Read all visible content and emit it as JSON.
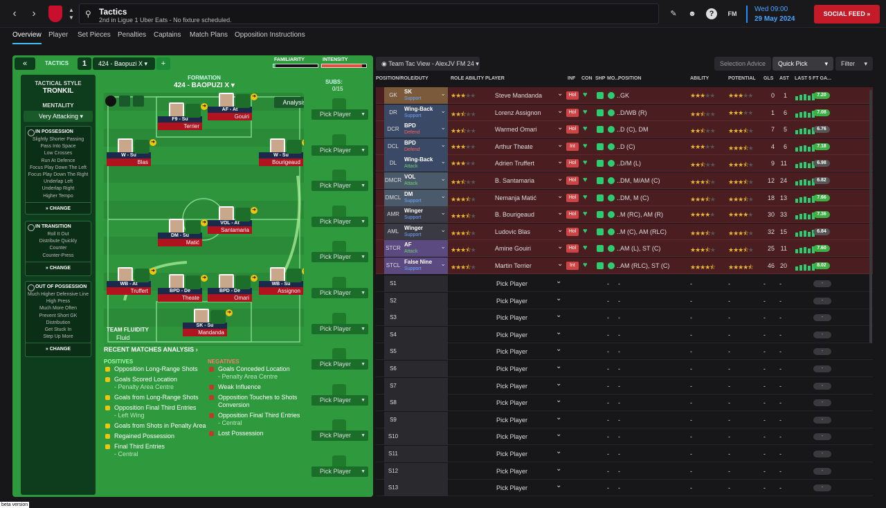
{
  "topbar": {
    "title": "Tactics",
    "subtitle": "2nd in Ligue 1 Uber Eats - No fixture scheduled.",
    "date_day": "Wed 09:00",
    "date_full": "29 May 2024",
    "social": "SOCIAL FEED",
    "fm": "FM"
  },
  "tabs": [
    "Overview",
    "Player",
    "Set Pieces",
    "Penalties",
    "Captains",
    "Match Plans",
    "Opposition Instructions"
  ],
  "tactics": {
    "label": "TACTICS",
    "slot": "1",
    "name": "424 - Baopuzi X",
    "familiarity_label": "FAMILIARITY",
    "intensity_label": "INTENSITY",
    "familiarity": 0.05,
    "intensity": 0.9,
    "style_label": "TACTICAL STYLE",
    "style": "TRONKIL",
    "mentality_label": "MENTALITY",
    "mentality": "Very Attacking",
    "in_possession": {
      "title": "IN POSSESSION",
      "items": [
        "Slightly Shorter Passing",
        "Pass Into Space",
        "Low Crosses",
        "Run At Defence",
        "Focus Play Down The Left",
        "Focus Play Down The Right",
        "Underlap Left",
        "Underlap Right",
        "Higher Tempo"
      ]
    },
    "in_transition": {
      "title": "IN TRANSITION",
      "items": [
        "Roll It Out",
        "Distribute Quickly",
        "Counter",
        "Counter-Press"
      ]
    },
    "out_of_possession": {
      "title": "OUT OF POSSESSION",
      "items": [
        "Much Higher Defensive Line",
        "High Press",
        "Much More Often",
        "Prevent Short GK",
        "Distribution",
        "Get Stuck In",
        "Step Up More"
      ]
    },
    "change": "CHANGE",
    "formation_label": "FORMATION",
    "formation": "424 - BAOPUZI X",
    "subs_label": "SUBS:",
    "subs": "0/15",
    "analysis_btn": "Analysis",
    "fluidity_label": "TEAM FLUIDITY",
    "fluidity": "Fluid"
  },
  "pitch_players": [
    {
      "role": "F9 - Su",
      "name": "Terrier"
    },
    {
      "role": "AF - At",
      "name": "Gouiri"
    },
    {
      "role": "W - Su",
      "name": "Blas"
    },
    {
      "role": "W - Su",
      "name": "Bourigeaud"
    },
    {
      "role": "VOL - At",
      "name": "Santamaria"
    },
    {
      "role": "DM - Su",
      "name": "Matić"
    },
    {
      "role": "WB - At",
      "name": "Truffert"
    },
    {
      "role": "BPD - De",
      "name": "Theate"
    },
    {
      "role": "BPD - De",
      "name": "Omari"
    },
    {
      "role": "WB - Su",
      "name": "Assignon"
    },
    {
      "role": "SK - Su",
      "name": "Mandanda"
    }
  ],
  "pick_player": "Pick Player",
  "recent": {
    "title": "RECENT MATCHES ANALYSIS",
    "positives_label": "POSITIVES",
    "negatives_label": "NEGATIVES",
    "positives": [
      {
        "t": "Opposition Long-Range Shots",
        "s": ""
      },
      {
        "t": "Goals Scored Location",
        "s": "- Penalty Area Centre"
      },
      {
        "t": "Goals from Long-Range Shots",
        "s": ""
      },
      {
        "t": "Opposition Final Third Entries",
        "s": "- Left Wing"
      },
      {
        "t": "Goals from Shots in Penalty Area",
        "s": ""
      },
      {
        "t": "Regained Possession",
        "s": ""
      },
      {
        "t": "Final Third Entries",
        "s": "- Central"
      }
    ],
    "negatives": [
      {
        "t": "Goals Conceded Location",
        "s": "- Penalty Area Centre"
      },
      {
        "t": "Weak Influence",
        "s": ""
      },
      {
        "t": "Opposition Touches to Shots Conversion",
        "s": ""
      },
      {
        "t": "Opposition Final Third Entries",
        "s": "- Central"
      },
      {
        "t": "Lost Possession",
        "s": ""
      }
    ]
  },
  "right": {
    "view": "Team Tac View - AlexJV FM 24",
    "selection_advice": "Selection Advice",
    "quick_pick": "Quick Pick",
    "filter": "Filter",
    "headers": {
      "pos": "POSITION/ROLE/DUTY",
      "role_ability": "ROLE ABILITY",
      "player": "PLAYER",
      "inf": "INF",
      "con": "CON",
      "shp": "SHP",
      "mo": "MO...",
      "position": "POSITION",
      "ability": "ABILITY",
      "potential": "POTENTIAL",
      "gls": "GLS",
      "ast": "AST",
      "last5": "LAST 5 FT GA..."
    },
    "rows": [
      {
        "pos": "GK",
        "role": "SK",
        "duty": "Support",
        "ra": 3,
        "player": "Steve Mandanda",
        "inf": "Hol",
        "position": "..GK",
        "ab": 3,
        "pot": 3,
        "gls": "0",
        "ast": "1",
        "rating": "7.20",
        "rc": "#3cb043"
      },
      {
        "pos": "DR",
        "role": "Wing-Back",
        "duty": "Support",
        "ra": 2.5,
        "player": "Lorenz Assignon",
        "inf": "Hol",
        "position": "..D/WB (R)",
        "ab": 2.5,
        "pot": 3,
        "gls": "1",
        "ast": "6",
        "rating": "7.08",
        "rc": "#3cb043"
      },
      {
        "pos": "DCR",
        "role": "BPD",
        "duty": "Defend",
        "ra": 2.5,
        "player": "Warmed Omari",
        "inf": "Hol",
        "position": "..D (C), DM",
        "ab": 2.5,
        "pot": 3.5,
        "gls": "7",
        "ast": "5",
        "rating": "6.76",
        "rc": "#555"
      },
      {
        "pos": "DCL",
        "role": "BPD",
        "duty": "Defend",
        "ra": 3,
        "player": "Arthur Theate",
        "inf": "Int",
        "position": "..D (C)",
        "ab": 3,
        "pot": 3.5,
        "gls": "4",
        "ast": "6",
        "rating": "7.18",
        "rc": "#3cb043"
      },
      {
        "pos": "DL",
        "role": "Wing-Back",
        "duty": "Attack",
        "ra": 3,
        "player": "Adrien Truffert",
        "inf": "Hol",
        "position": "..D/M (L)",
        "ab": 2.5,
        "pot": 3.5,
        "gls": "9",
        "ast": "11",
        "rating": "6.98",
        "rc": "#555"
      },
      {
        "pos": "DMCR",
        "role": "VOL",
        "duty": "Attack",
        "ra": 2.5,
        "player": "B. Santamaria",
        "inf": "Hol",
        "position": "..DM, M/AM (C)",
        "ab": 3.5,
        "pot": 3.5,
        "gls": "12",
        "ast": "24",
        "rating": "6.82",
        "rc": "#555"
      },
      {
        "pos": "DMCL",
        "role": "DM",
        "duty": "Support",
        "ra": 3.5,
        "player": "Nemanja Matić",
        "inf": "Hol",
        "position": "..DM, M (C)",
        "ab": 3.5,
        "pot": 3.5,
        "gls": "18",
        "ast": "13",
        "rating": "7.66",
        "rc": "#3cb043"
      },
      {
        "pos": "AMR",
        "role": "Winger",
        "duty": "Support",
        "ra": 3.5,
        "player": "B. Bourigeaud",
        "inf": "Hol",
        "position": "..M (RC), AM (R)",
        "ab": 4,
        "pot": 4,
        "gls": "30",
        "ast": "33",
        "rating": "7.36",
        "rc": "#3cb043"
      },
      {
        "pos": "AML",
        "role": "Winger",
        "duty": "Support",
        "ra": 3.5,
        "player": "Ludovic Blas",
        "inf": "Hol",
        "position": "..M (C), AM (RLC)",
        "ab": 3.5,
        "pot": 3.5,
        "gls": "32",
        "ast": "15",
        "rating": "6.84",
        "rc": "#555"
      },
      {
        "pos": "STCR",
        "role": "AF",
        "duty": "Attack",
        "ra": 3.5,
        "player": "Amine Gouiri",
        "inf": "Hol",
        "position": "..AM (L), ST (C)",
        "ab": 3.5,
        "pot": 3.5,
        "gls": "25",
        "ast": "11",
        "rating": "7.60",
        "rc": "#3cb043"
      },
      {
        "pos": "STCL",
        "role": "False Nine",
        "duty": "Support",
        "ra": 3.5,
        "player": "Martin Terrier",
        "inf": "Int",
        "position": "..AM (RLC), ST (C)",
        "ab": 4.5,
        "pot": 4.5,
        "gls": "46",
        "ast": "20",
        "rating": "8.02",
        "rc": "#3cb043"
      }
    ],
    "subs": [
      "S1",
      "S2",
      "S3",
      "S4",
      "S5",
      "S6",
      "S7",
      "S8",
      "S9",
      "S10",
      "S11",
      "S12",
      "S13"
    ],
    "dash": "-"
  },
  "beta": "beta version",
  "role_colors": {
    "GK": "#7a5a3a",
    "DEF": "#3a4a66",
    "DM": "#4a5a6a",
    "AM": "#3a3a44",
    "ST": "#5a4a80"
  }
}
